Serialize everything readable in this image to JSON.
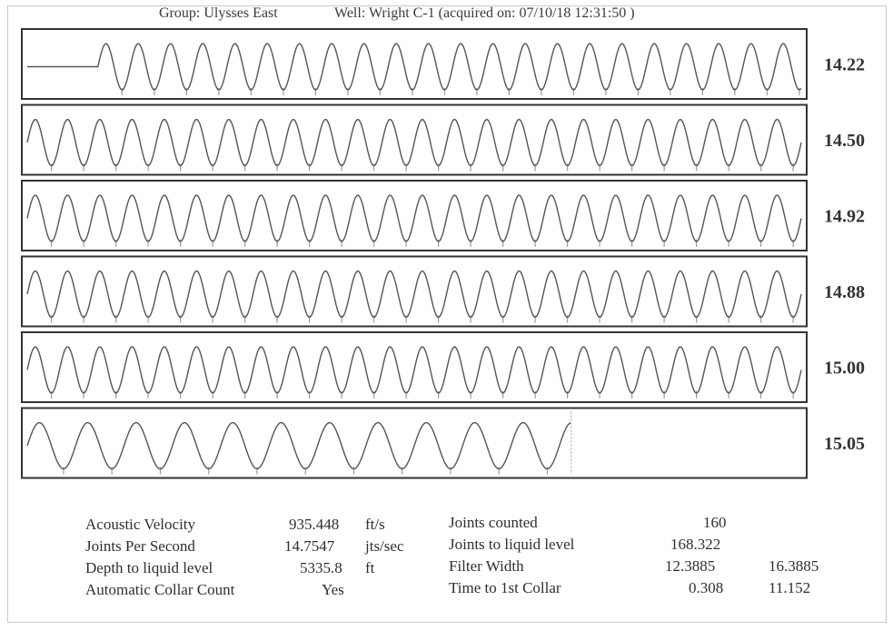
{
  "header": {
    "group": "Group: Ulysses East",
    "well": "Well: Wright C-1 (acquired on: 07/10/18 12:31:50 )"
  },
  "chart_data": {
    "type": "line",
    "title": "",
    "xlabel": "",
    "ylabel": "",
    "grid": false,
    "series": [
      {
        "name": "",
        "label": "14.22",
        "cycles": 24,
        "phase_offset": 0.09
      },
      {
        "name": "",
        "label": "14.50",
        "cycles": 24,
        "phase_offset": 0
      },
      {
        "name": "",
        "label": "14.92",
        "cycles": 24,
        "phase_offset": 0
      },
      {
        "name": "",
        "label": "14.88",
        "cycles": 24,
        "phase_offset": 0
      },
      {
        "name": "",
        "label": "15.00",
        "cycles": 24,
        "phase_offset": 0
      },
      {
        "name": "",
        "label": "15.05",
        "cycles": 16,
        "phase_offset": 0,
        "trace_end": 0.7
      }
    ]
  },
  "stats": {
    "left": [
      {
        "label": "Acoustic Velocity",
        "value": "935.448",
        "unit": "ft/s"
      },
      {
        "label": "Joints Per Second",
        "value": "14.7547",
        "unit": "jts/sec"
      },
      {
        "label": "Depth to liquid level",
        "value": "5335.8",
        "unit": "ft"
      },
      {
        "label": "Automatic Collar Count",
        "value": "Yes",
        "unit": ""
      }
    ],
    "right": [
      {
        "label": "Joints counted",
        "value": "160",
        "value2": ""
      },
      {
        "label": "Joints to liquid level",
        "value": "168.322",
        "value2": ""
      },
      {
        "label": "Filter Width",
        "value": "12.3885",
        "value2": "16.3885"
      },
      {
        "label": "Time to 1st Collar",
        "value": "0.308",
        "value2": "11.152"
      }
    ]
  },
  "colors": {
    "trace": "#555555",
    "marker": "#9a9a9a",
    "marker_blue": "#8aa7c8",
    "box": "#333333"
  }
}
